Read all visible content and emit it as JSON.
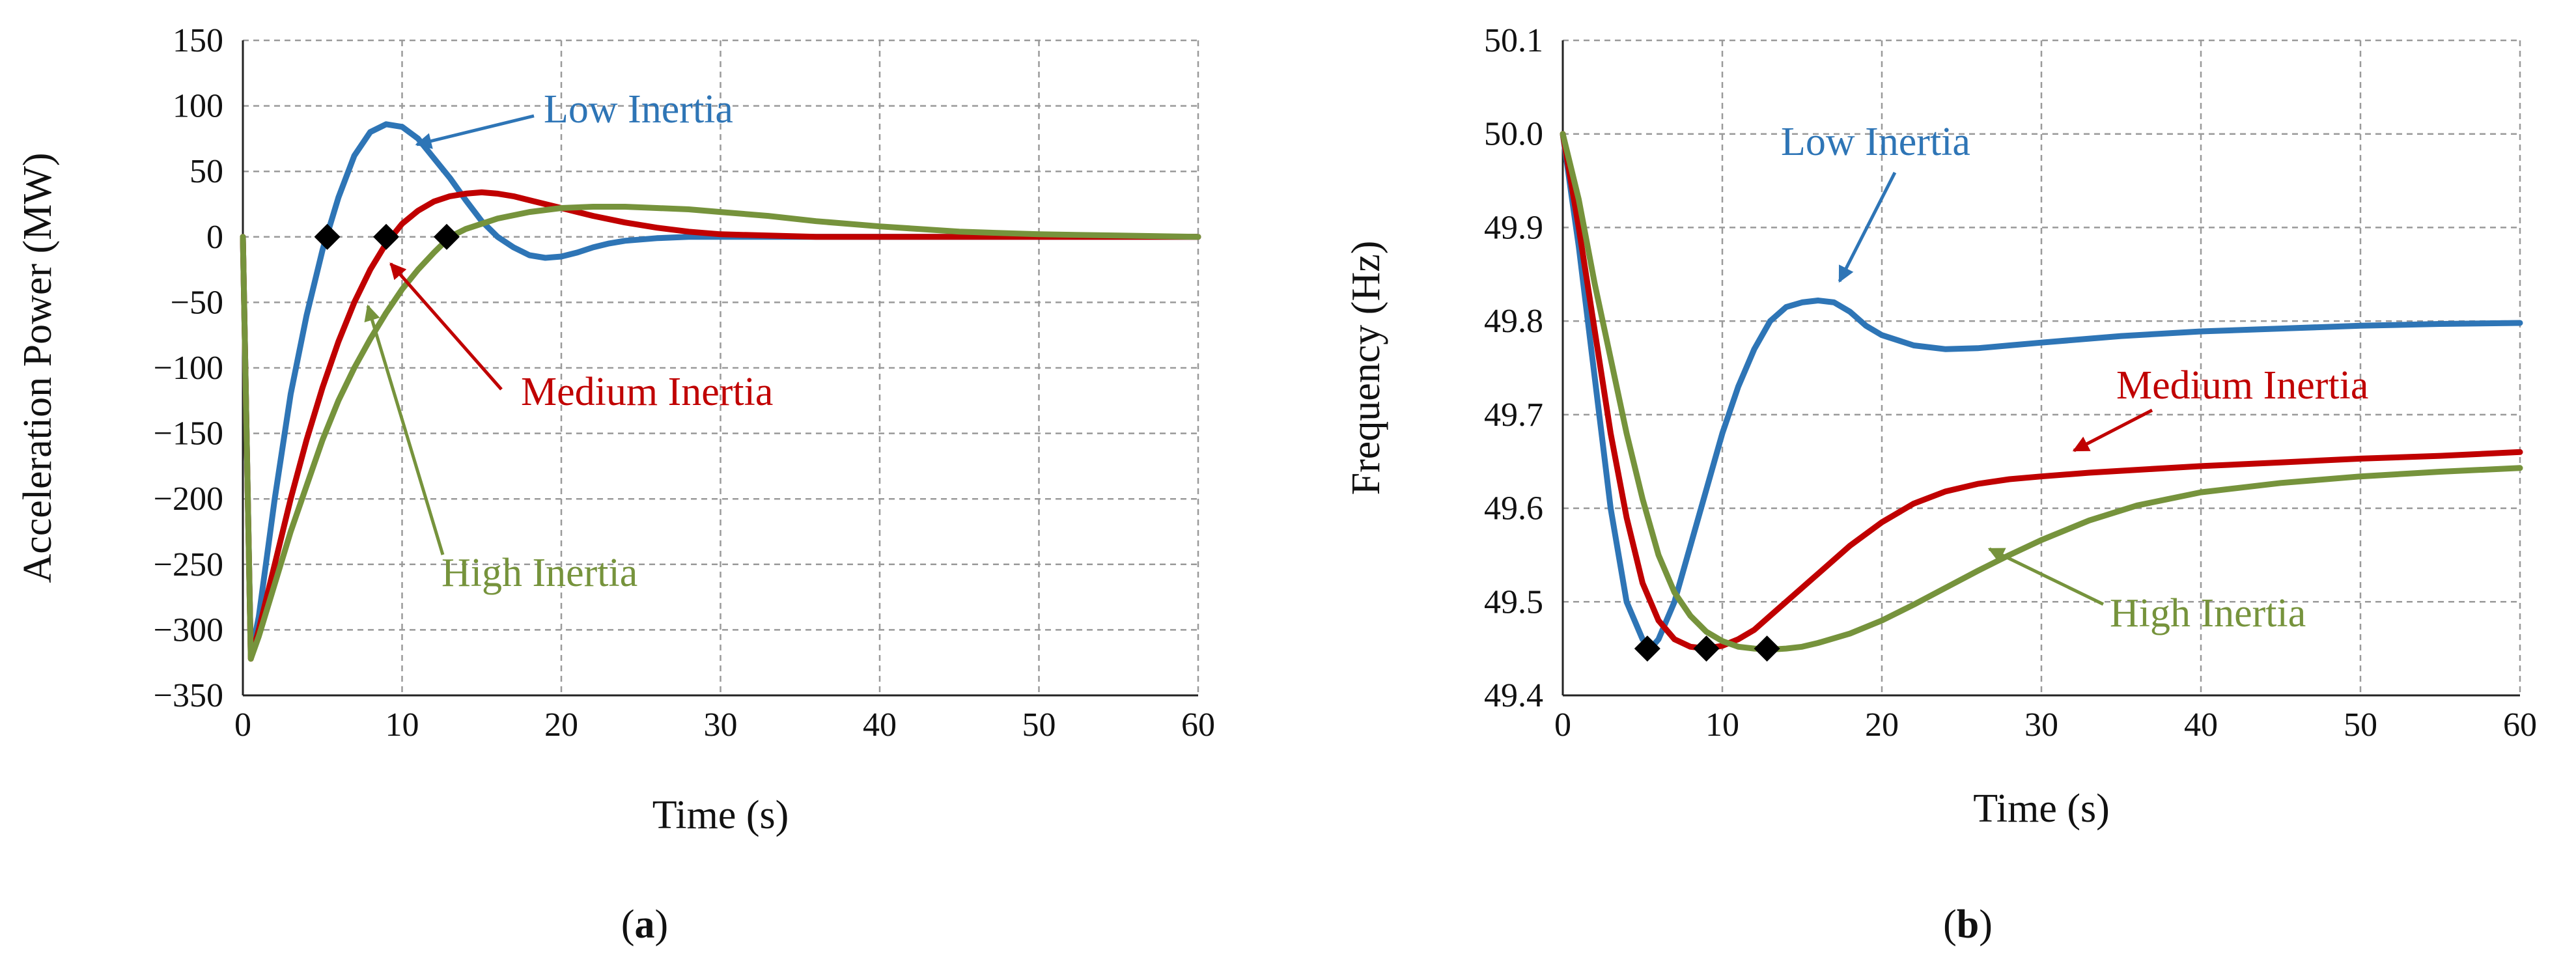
{
  "colors": {
    "low": "#2E75B6",
    "medium": "#C00000",
    "high": "#76933C",
    "grid": "#9a9a9a",
    "marker": "#000000"
  },
  "panel_labels": {
    "a_open": "(",
    "a_letter": "a",
    "a_close": ")",
    "b_open": "(",
    "b_letter": "b",
    "b_close": ")"
  },
  "chart_data": [
    {
      "type": "line",
      "ylabel": "Acceleration Power (MW)",
      "xlabel": "Time (s)",
      "xlim": [
        0,
        60
      ],
      "ylim": [
        -350,
        150
      ],
      "xticks": [
        0,
        10,
        20,
        30,
        40,
        50,
        60
      ],
      "yticks": [
        150,
        100,
        50,
        0,
        -50,
        -100,
        -150,
        -200,
        -250,
        -300,
        -350
      ],
      "ytick_labels": [
        "150",
        "100",
        "50",
        "0",
        "−50",
        "−100",
        "−150",
        "−200",
        "−250",
        "−300",
        "−350"
      ],
      "grid": true,
      "series": [
        {
          "name": "Low Inertia",
          "key": "low",
          "x": [
            0,
            0.5,
            1,
            2,
            3,
            4,
            5,
            6,
            7,
            8,
            9,
            10,
            11,
            12,
            13,
            14,
            15,
            16,
            17,
            18,
            19,
            20,
            21,
            22,
            23,
            24,
            26,
            28,
            30,
            35,
            40,
            50,
            60
          ],
          "y": [
            0,
            -320,
            -290,
            -200,
            -120,
            -60,
            -10,
            30,
            62,
            80,
            86,
            84,
            75,
            60,
            45,
            28,
            12,
            0,
            -8,
            -14,
            -16,
            -15,
            -12,
            -8,
            -5,
            -3,
            -1,
            0,
            0,
            0,
            0,
            0,
            0
          ]
        },
        {
          "name": "Medium Inertia",
          "key": "medium",
          "x": [
            0,
            0.5,
            1,
            2,
            3,
            4,
            5,
            6,
            7,
            8,
            9,
            10,
            11,
            12,
            13,
            14,
            15,
            16,
            17,
            18,
            19,
            20,
            22,
            24,
            26,
            28,
            30,
            33,
            36,
            40,
            45,
            50,
            60
          ],
          "y": [
            0,
            -322,
            -300,
            -250,
            -200,
            -155,
            -115,
            -80,
            -50,
            -25,
            -5,
            10,
            20,
            27,
            31,
            33,
            34,
            33,
            31,
            28,
            25,
            22,
            16,
            11,
            7,
            4,
            2,
            1,
            0,
            0,
            0,
            0,
            0
          ]
        },
        {
          "name": "High Inertia",
          "key": "high",
          "x": [
            0,
            0.5,
            1,
            2,
            3,
            4,
            5,
            6,
            7,
            8,
            9,
            10,
            11,
            12,
            13,
            14,
            15,
            16,
            18,
            20,
            22,
            24,
            26,
            28,
            30,
            33,
            36,
            40,
            45,
            50,
            55,
            60
          ],
          "y": [
            0,
            -322,
            -305,
            -265,
            -225,
            -190,
            -155,
            -125,
            -100,
            -78,
            -58,
            -40,
            -25,
            -12,
            0,
            6,
            10,
            14,
            19,
            22,
            23,
            23,
            22,
            21,
            19,
            16,
            12,
            8,
            4,
            2,
            1,
            0
          ]
        }
      ],
      "markers": [
        {
          "x": 5.3,
          "y": 0
        },
        {
          "x": 9.0,
          "y": 0
        },
        {
          "x": 12.8,
          "y": 0
        }
      ],
      "annotations": [
        {
          "text": "Low Inertia",
          "key": "low"
        },
        {
          "text": "Medium Inertia",
          "key": "medium"
        },
        {
          "text": "High Inertia",
          "key": "high"
        }
      ]
    },
    {
      "type": "line",
      "ylabel": "Frequency (Hz)",
      "xlabel": "Time (s)",
      "xlim": [
        0,
        60
      ],
      "ylim": [
        49.4,
        50.1
      ],
      "xticks": [
        0,
        10,
        20,
        30,
        40,
        50,
        60
      ],
      "yticks": [
        50.1,
        50.0,
        49.9,
        49.8,
        49.7,
        49.6,
        49.5,
        49.4
      ],
      "ytick_labels": [
        "50.1",
        "50.0",
        "49.9",
        "49.8",
        "49.7",
        "49.6",
        "49.5",
        "49.4"
      ],
      "grid": true,
      "series": [
        {
          "name": "Low Inertia",
          "key": "low",
          "x": [
            0,
            1,
            2,
            3,
            4,
            5,
            5.5,
            6,
            7,
            8,
            9,
            10,
            11,
            12,
            13,
            14,
            15,
            16,
            17,
            18,
            19,
            20,
            22,
            24,
            26,
            28,
            30,
            35,
            40,
            45,
            50,
            55,
            60
          ],
          "y": [
            50.0,
            49.88,
            49.74,
            49.6,
            49.5,
            49.46,
            49.45,
            49.46,
            49.5,
            49.56,
            49.62,
            49.68,
            49.73,
            49.77,
            49.8,
            49.815,
            49.82,
            49.822,
            49.82,
            49.81,
            49.795,
            49.785,
            49.774,
            49.77,
            49.771,
            49.774,
            49.777,
            49.784,
            49.789,
            49.792,
            49.795,
            49.797,
            49.798
          ]
        },
        {
          "name": "Medium Inertia",
          "key": "medium",
          "x": [
            0,
            1,
            2,
            3,
            4,
            5,
            6,
            7,
            8,
            9,
            10,
            11,
            12,
            13,
            14,
            15,
            16,
            18,
            20,
            22,
            24,
            26,
            28,
            30,
            33,
            36,
            40,
            45,
            50,
            55,
            60
          ],
          "y": [
            50.0,
            49.9,
            49.79,
            49.68,
            49.59,
            49.52,
            49.48,
            49.46,
            49.452,
            49.45,
            49.453,
            49.46,
            49.47,
            49.485,
            49.5,
            49.515,
            49.53,
            49.56,
            49.585,
            49.605,
            49.618,
            49.626,
            49.631,
            49.634,
            49.638,
            49.641,
            49.645,
            49.649,
            49.653,
            49.656,
            49.66
          ]
        },
        {
          "name": "High Inertia",
          "key": "high",
          "x": [
            0,
            1,
            2,
            3,
            4,
            5,
            6,
            7,
            8,
            9,
            10,
            11,
            12,
            13,
            14,
            15,
            16,
            18,
            20,
            22,
            24,
            26,
            28,
            30,
            33,
            36,
            40,
            45,
            50,
            55,
            60
          ],
          "y": [
            50.0,
            49.93,
            49.84,
            49.76,
            49.68,
            49.61,
            49.55,
            49.51,
            49.485,
            49.468,
            49.458,
            49.452,
            49.45,
            49.449,
            49.45,
            49.452,
            49.456,
            49.466,
            49.48,
            49.497,
            49.515,
            49.533,
            49.55,
            49.566,
            49.587,
            49.603,
            49.617,
            49.627,
            49.634,
            49.639,
            49.643
          ]
        }
      ],
      "markers": [
        {
          "x": 5.3,
          "y": 49.45
        },
        {
          "x": 9.0,
          "y": 49.45
        },
        {
          "x": 12.8,
          "y": 49.45
        }
      ],
      "annotations": [
        {
          "text": "Low Inertia",
          "key": "low"
        },
        {
          "text": "Medium Inertia",
          "key": "medium"
        },
        {
          "text": "High Inertia",
          "key": "high"
        }
      ]
    }
  ]
}
